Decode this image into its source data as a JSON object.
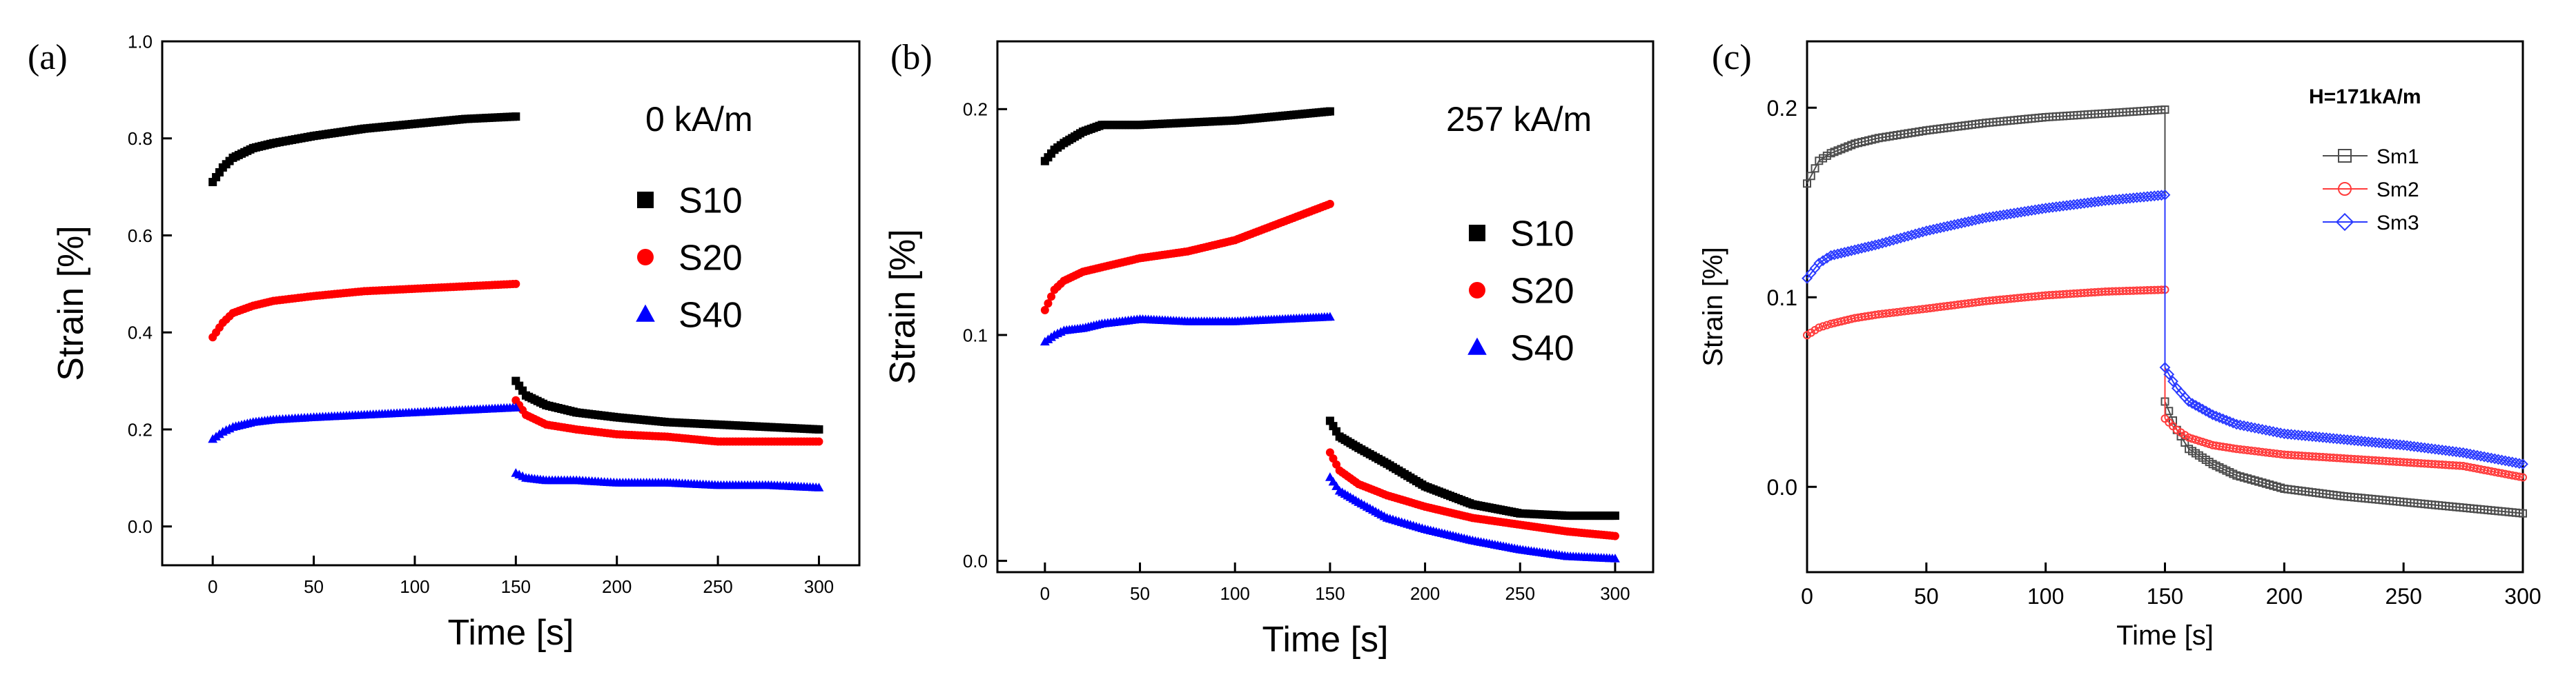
{
  "chart_data": [
    {
      "panel": "(a)",
      "type": "scatter",
      "annotation": "0 kA/m",
      "xlabel": "Time [s]",
      "ylabel": "Strain [%]",
      "xlim": [
        -25,
        320
      ],
      "ylim": [
        -0.08,
        1.0
      ],
      "xticks": [
        "0",
        "50",
        "100",
        "150",
        "200",
        "250",
        "300"
      ],
      "yticks": [
        "0.0",
        "0.2",
        "0.4",
        "0.6",
        "0.8",
        "1.0"
      ],
      "legend": "right, below annotation",
      "marker": "square/circle/triangle",
      "series": [
        {
          "name": "S10",
          "color": "#000000",
          "marker": "square",
          "segments": [
            {
              "x": [
                0,
                5,
                10,
                20,
                30,
                50,
                75,
                100,
                125,
                150
              ],
              "y": [
                0.71,
                0.74,
                0.76,
                0.78,
                0.79,
                0.805,
                0.82,
                0.83,
                0.84,
                0.845
              ]
            },
            {
              "x": [
                150,
                155,
                165,
                180,
                200,
                225,
                250,
                275,
                300
              ],
              "y": [
                0.3,
                0.27,
                0.25,
                0.235,
                0.225,
                0.215,
                0.21,
                0.205,
                0.2
              ]
            }
          ]
        },
        {
          "name": "S20",
          "color": "#ff0000",
          "marker": "circle",
          "segments": [
            {
              "x": [
                0,
                5,
                10,
                20,
                30,
                50,
                75,
                100,
                125,
                150
              ],
              "y": [
                0.39,
                0.42,
                0.44,
                0.455,
                0.465,
                0.475,
                0.485,
                0.49,
                0.495,
                0.5
              ]
            },
            {
              "x": [
                150,
                155,
                165,
                180,
                200,
                225,
                250,
                275,
                300
              ],
              "y": [
                0.26,
                0.23,
                0.21,
                0.2,
                0.19,
                0.185,
                0.175,
                0.175,
                0.175
              ]
            }
          ]
        },
        {
          "name": "S40",
          "color": "#0000ff",
          "marker": "triangle",
          "segments": [
            {
              "x": [
                0,
                5,
                10,
                20,
                30,
                50,
                75,
                100,
                125,
                150
              ],
              "y": [
                0.18,
                0.195,
                0.205,
                0.215,
                0.22,
                0.225,
                0.23,
                0.235,
                0.24,
                0.245
              ]
            },
            {
              "x": [
                150,
                155,
                165,
                180,
                200,
                225,
                250,
                275,
                300
              ],
              "y": [
                0.11,
                0.1,
                0.095,
                0.095,
                0.09,
                0.09,
                0.085,
                0.085,
                0.08
              ]
            }
          ]
        }
      ]
    },
    {
      "panel": "(b)",
      "type": "scatter",
      "annotation": "257 kA/m",
      "xlabel": "Time [s]",
      "ylabel": "Strain [%]",
      "xlim": [
        -25,
        320
      ],
      "ylim": [
        -0.005,
        0.23
      ],
      "xticks": [
        "0",
        "50",
        "100",
        "150",
        "200",
        "250",
        "300"
      ],
      "yticks": [
        "0.0",
        "0.1",
        "0.2"
      ],
      "legend": "right, below annotation",
      "series": [
        {
          "name": "S10",
          "color": "#000000",
          "marker": "square",
          "segments": [
            {
              "x": [
                0,
                5,
                10,
                20,
                30,
                50,
                75,
                100,
                125,
                150
              ],
              "y": [
                0.177,
                0.182,
                0.185,
                0.19,
                0.193,
                0.193,
                0.194,
                0.195,
                0.197,
                0.199
              ]
            },
            {
              "x": [
                150,
                155,
                165,
                180,
                200,
                225,
                250,
                275,
                300
              ],
              "y": [
                0.062,
                0.055,
                0.05,
                0.043,
                0.033,
                0.025,
                0.021,
                0.02,
                0.02
              ]
            }
          ]
        },
        {
          "name": "S20",
          "color": "#ff0000",
          "marker": "circle",
          "segments": [
            {
              "x": [
                0,
                5,
                10,
                20,
                30,
                50,
                75,
                100,
                125,
                150
              ],
              "y": [
                0.111,
                0.12,
                0.124,
                0.128,
                0.13,
                0.134,
                0.137,
                0.142,
                0.15,
                0.158
              ]
            },
            {
              "x": [
                150,
                155,
                165,
                180,
                200,
                225,
                250,
                275,
                300
              ],
              "y": [
                0.048,
                0.04,
                0.034,
                0.029,
                0.024,
                0.019,
                0.016,
                0.013,
                0.011
              ]
            }
          ]
        },
        {
          "name": "S40",
          "color": "#0000ff",
          "marker": "triangle",
          "segments": [
            {
              "x": [
                0,
                5,
                10,
                20,
                30,
                50,
                75,
                100,
                125,
                150
              ],
              "y": [
                0.097,
                0.1,
                0.102,
                0.103,
                0.105,
                0.107,
                0.106,
                0.106,
                0.107,
                0.108
              ]
            },
            {
              "x": [
                150,
                155,
                165,
                180,
                200,
                225,
                250,
                275,
                300
              ],
              "y": [
                0.037,
                0.031,
                0.026,
                0.019,
                0.014,
                0.009,
                0.005,
                0.002,
                0.001
              ]
            }
          ]
        }
      ]
    },
    {
      "panel": "(c)",
      "type": "line",
      "annotation": "H=171kA/m",
      "xlabel": "Time [s]",
      "ylabel": "Strain [%]",
      "xlim": [
        0,
        300
      ],
      "ylim": [
        -0.045,
        0.235
      ],
      "xticks": [
        "0",
        "50",
        "100",
        "150",
        "200",
        "250",
        "300"
      ],
      "yticks": [
        "0.0",
        "0.1",
        "0.2"
      ],
      "legend": "upper right",
      "series": [
        {
          "name": "Sm1",
          "color": "#4d4d4d",
          "marker": "square-open",
          "segments": [
            {
              "x": [
                0,
                5,
                10,
                20,
                30,
                50,
                75,
                100,
                125,
                150
              ],
              "y": [
                0.16,
                0.172,
                0.176,
                0.181,
                0.184,
                0.188,
                0.192,
                0.195,
                0.197,
                0.199
              ]
            },
            {
              "x": [
                150,
                155,
                160,
                170,
                180,
                200,
                225,
                250,
                275,
                300
              ],
              "y": [
                0.045,
                0.03,
                0.02,
                0.012,
                0.006,
                -0.001,
                -0.005,
                -0.008,
                -0.011,
                -0.014
              ]
            }
          ]
        },
        {
          "name": "Sm2",
          "color": "#ff3b3b",
          "marker": "circle-open",
          "segments": [
            {
              "x": [
                0,
                5,
                10,
                20,
                30,
                50,
                75,
                100,
                125,
                150
              ],
              "y": [
                0.08,
                0.084,
                0.086,
                0.089,
                0.091,
                0.094,
                0.098,
                0.101,
                0.103,
                0.104
              ]
            },
            {
              "x": [
                150,
                155,
                160,
                170,
                180,
                200,
                225,
                250,
                275,
                300
              ],
              "y": [
                0.036,
                0.03,
                0.026,
                0.022,
                0.02,
                0.017,
                0.015,
                0.013,
                0.011,
                0.005
              ]
            }
          ]
        },
        {
          "name": "Sm3",
          "color": "#2b3bff",
          "marker": "diamond-open",
          "segments": [
            {
              "x": [
                0,
                5,
                10,
                20,
                30,
                50,
                75,
                100,
                125,
                150
              ],
              "y": [
                0.11,
                0.118,
                0.122,
                0.125,
                0.128,
                0.135,
                0.142,
                0.147,
                0.151,
                0.154
              ]
            },
            {
              "x": [
                150,
                155,
                160,
                170,
                180,
                200,
                225,
                250,
                275,
                300
              ],
              "y": [
                0.063,
                0.052,
                0.045,
                0.038,
                0.033,
                0.028,
                0.025,
                0.022,
                0.018,
                0.012
              ]
            }
          ]
        }
      ]
    }
  ]
}
